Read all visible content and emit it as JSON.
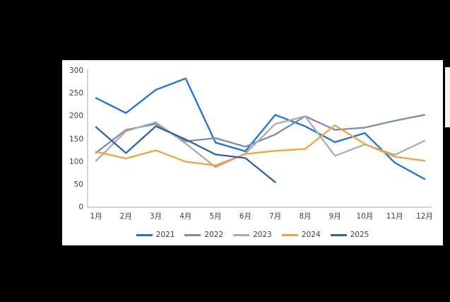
{
  "panel": {
    "background": "#ffffff",
    "page_background": "#000000",
    "axis_color": "#a6a6a6",
    "text_color": "#3f3f3f"
  },
  "chart_data": {
    "type": "line",
    "title": "",
    "xlabel": "",
    "ylabel": "",
    "ylim": [
      0,
      300
    ],
    "yticks": [
      0,
      50,
      100,
      150,
      200,
      250,
      300
    ],
    "grid": false,
    "legend_position": "bottom",
    "categories": [
      "1月",
      "2月",
      "3月",
      "4月",
      "5月",
      "6月",
      "7月",
      "8月",
      "9月",
      "10月",
      "11月",
      "12月"
    ],
    "series": [
      {
        "name": "2021",
        "color": "#1B72D8",
        "values": [
          240,
          207,
          258,
          283,
          142,
          123,
          203,
          178,
          143,
          163,
          98,
          62
        ]
      },
      {
        "name": "2022",
        "color": "#7B8CA6",
        "values": [
          120,
          170,
          183,
          145,
          152,
          133,
          160,
          200,
          170,
          175,
          190,
          203
        ]
      },
      {
        "name": "2023",
        "color": "#ABABAB",
        "values": [
          102,
          167,
          187,
          140,
          88,
          118,
          183,
          200,
          113,
          138,
          115,
          146
        ]
      },
      {
        "name": "2024",
        "color": "#F0A03C",
        "values": [
          122,
          107,
          125,
          100,
          92,
          117,
          124,
          128,
          180,
          139,
          111,
          102
        ]
      },
      {
        "name": "2025",
        "color": "#2E5FA3",
        "values": [
          176,
          119,
          178,
          149,
          116,
          108,
          55,
          null,
          null,
          null,
          null,
          null
        ]
      }
    ]
  }
}
